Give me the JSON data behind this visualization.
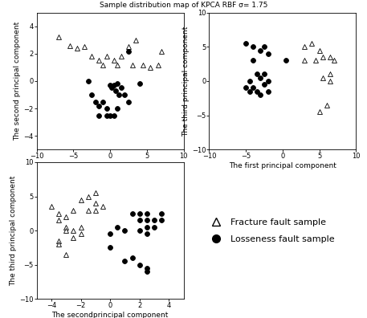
{
  "title": "Sample distribution map of KPCA RBF σ= 1.75",
  "plot1": {
    "xlabel": "The first principal component",
    "ylabel": "The second principal component",
    "xlim": [
      -10,
      10
    ],
    "ylim": [
      -5,
      5
    ],
    "xticks": [
      -10,
      -5,
      0,
      5,
      10
    ],
    "yticks": [
      -4,
      -2,
      0,
      2,
      4
    ],
    "triangles": [
      [
        -7,
        3.2
      ],
      [
        -5.5,
        2.6
      ],
      [
        -4.5,
        2.4
      ],
      [
        -3.5,
        2.5
      ],
      [
        -2.5,
        1.8
      ],
      [
        -1.5,
        1.5
      ],
      [
        -0.5,
        1.8
      ],
      [
        0.5,
        1.5
      ],
      [
        1.5,
        1.8
      ],
      [
        2.5,
        2.5
      ],
      [
        3.5,
        3.0
      ],
      [
        4.5,
        1.2
      ],
      [
        5.5,
        1.0
      ],
      [
        6.5,
        1.2
      ],
      [
        7,
        2.2
      ],
      [
        -1.0,
        1.2
      ],
      [
        1.0,
        1.2
      ],
      [
        3.0,
        1.2
      ]
    ],
    "circles": [
      [
        -3,
        0.0
      ],
      [
        -2.5,
        -1.0
      ],
      [
        -2,
        -1.5
      ],
      [
        -1.5,
        -1.8
      ],
      [
        -1,
        -1.5
      ],
      [
        -0.5,
        -2.0
      ],
      [
        0,
        -0.3
      ],
      [
        0.2,
        -0.5
      ],
      [
        0.5,
        -0.3
      ],
      [
        0.8,
        -0.7
      ],
      [
        1.0,
        -0.2
      ],
      [
        1.2,
        -1.0
      ],
      [
        1.5,
        -0.5
      ],
      [
        2.0,
        -1.0
      ],
      [
        -1.5,
        -2.5
      ],
      [
        -0.5,
        -2.5
      ],
      [
        0.0,
        -2.5
      ],
      [
        0.5,
        -2.5
      ],
      [
        1.0,
        -2.0
      ],
      [
        2.5,
        2.2
      ],
      [
        4.0,
        -0.2
      ],
      [
        2.5,
        -1.5
      ]
    ]
  },
  "plot2": {
    "xlabel": "The first principal component",
    "ylabel": "The third principal component",
    "xlim": [
      -10,
      10
    ],
    "ylim": [
      -10,
      10
    ],
    "xticks": [
      -10,
      -5,
      0,
      5,
      10
    ],
    "yticks": [
      -10,
      -5,
      0,
      5,
      10
    ],
    "triangles": [
      [
        3.0,
        5.0
      ],
      [
        4.0,
        5.5
      ],
      [
        5.0,
        4.5
      ],
      [
        4.5,
        3.0
      ],
      [
        3.0,
        3.0
      ],
      [
        5.5,
        3.5
      ],
      [
        6.5,
        3.5
      ],
      [
        7.0,
        3.0
      ],
      [
        6.5,
        1.0
      ],
      [
        5.5,
        0.5
      ],
      [
        6.5,
        0.0
      ],
      [
        6.0,
        -3.5
      ],
      [
        5.0,
        -4.5
      ]
    ],
    "circles": [
      [
        -5.0,
        5.5
      ],
      [
        -4.0,
        5.0
      ],
      [
        -3.0,
        4.5
      ],
      [
        -2.5,
        5.0
      ],
      [
        -2.0,
        4.0
      ],
      [
        -4.0,
        3.0
      ],
      [
        -3.5,
        1.0
      ],
      [
        -3.0,
        0.5
      ],
      [
        -2.5,
        1.0
      ],
      [
        -2.0,
        0.0
      ],
      [
        -4.5,
        0.0
      ],
      [
        -5.0,
        -1.0
      ],
      [
        -3.0,
        -2.0
      ],
      [
        -3.5,
        -1.5
      ],
      [
        -4.0,
        -1.0
      ],
      [
        -4.5,
        -1.5
      ],
      [
        -2.5,
        -0.5
      ],
      [
        -2.0,
        -1.5
      ],
      [
        0.5,
        3.0
      ]
    ]
  },
  "plot3": {
    "xlabel": "The secondprincipal component",
    "ylabel": "The third principal component",
    "xlim": [
      -5,
      5
    ],
    "ylim": [
      -10,
      10
    ],
    "xticks": [
      -4,
      -2,
      0,
      2,
      4
    ],
    "yticks": [
      -10,
      -5,
      0,
      5,
      10
    ],
    "triangles": [
      [
        -4.0,
        3.5
      ],
      [
        -3.5,
        2.5
      ],
      [
        -3.0,
        2.0
      ],
      [
        -3.5,
        1.5
      ],
      [
        -3.0,
        0.5
      ],
      [
        -3.0,
        0.0
      ],
      [
        -2.5,
        0.0
      ],
      [
        -2.0,
        0.5
      ],
      [
        -2.0,
        -0.5
      ],
      [
        -2.5,
        -1.0
      ],
      [
        -3.5,
        -1.5
      ],
      [
        -3.5,
        -2.0
      ],
      [
        -3.0,
        -3.5
      ],
      [
        -2.5,
        3.0
      ],
      [
        -2.0,
        4.5
      ],
      [
        -1.5,
        5.0
      ],
      [
        -1.0,
        5.5
      ],
      [
        -1.0,
        4.0
      ],
      [
        -1.5,
        3.0
      ],
      [
        -1.0,
        3.0
      ],
      [
        -0.5,
        3.5
      ]
    ],
    "circles": [
      [
        0.0,
        -0.5
      ],
      [
        0.5,
        0.5
      ],
      [
        0.0,
        -2.5
      ],
      [
        1.0,
        0.0
      ],
      [
        1.5,
        2.5
      ],
      [
        2.0,
        2.5
      ],
      [
        2.5,
        2.5
      ],
      [
        2.0,
        1.5
      ],
      [
        2.5,
        1.5
      ],
      [
        3.0,
        1.5
      ],
      [
        3.5,
        2.5
      ],
      [
        3.5,
        1.5
      ],
      [
        3.0,
        0.5
      ],
      [
        2.5,
        0.5
      ],
      [
        2.0,
        0.0
      ],
      [
        2.5,
        -0.5
      ],
      [
        1.5,
        -4.0
      ],
      [
        2.0,
        -5.0
      ],
      [
        2.5,
        -5.5
      ],
      [
        2.5,
        -6.0
      ],
      [
        1.0,
        -4.5
      ]
    ]
  },
  "legend_labels": [
    "Fracture fault sample",
    "Losseness fault sample"
  ]
}
